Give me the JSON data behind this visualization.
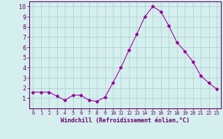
{
  "x": [
    0,
    1,
    2,
    3,
    4,
    5,
    6,
    7,
    8,
    9,
    10,
    11,
    12,
    13,
    14,
    15,
    16,
    17,
    18,
    19,
    20,
    21,
    22,
    23
  ],
  "y": [
    1.6,
    1.6,
    1.6,
    1.2,
    0.8,
    1.3,
    1.3,
    0.8,
    0.7,
    1.1,
    2.5,
    4.0,
    5.7,
    7.3,
    9.0,
    10.0,
    9.5,
    8.1,
    6.5,
    5.6,
    4.6,
    3.2,
    2.5,
    1.9
  ],
  "line_color": "#990099",
  "marker": "D",
  "marker_size": 2,
  "bg_color": "#d5eeee",
  "grid_color": "#aacccc",
  "axis_label_color": "#660066",
  "tick_color": "#660066",
  "xlabel": "Windchill (Refroidissement éolien,°C)",
  "xlim": [
    -0.5,
    23.5
  ],
  "ylim": [
    0,
    10.5
  ],
  "yticks": [
    1,
    2,
    3,
    4,
    5,
    6,
    7,
    8,
    9,
    10
  ],
  "xticks": [
    0,
    1,
    2,
    3,
    4,
    5,
    6,
    7,
    8,
    9,
    10,
    11,
    12,
    13,
    14,
    15,
    16,
    17,
    18,
    19,
    20,
    21,
    22,
    23
  ],
  "spine_color": "#660066",
  "tick_fontsize": 5,
  "xlabel_fontsize": 6,
  "ylabel_fontsize": 6
}
